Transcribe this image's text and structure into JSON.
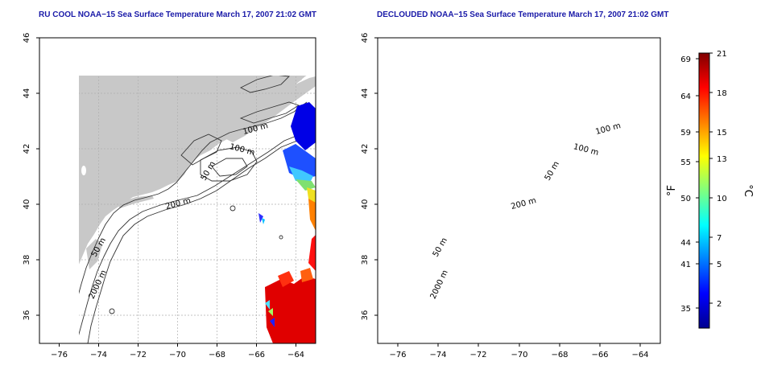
{
  "left_panel": {
    "title": "RU COOL NOAA−15 Sea Surface Temperature March 17, 2007 21:02 GMT",
    "contour_labels": [
      "100 m",
      "100 m",
      "50 m",
      "200 m",
      "50 m",
      "2000 m"
    ]
  },
  "right_panel": {
    "title": "DECLOUDED NOAA−15 Sea Surface Temperature March 17, 2007 21:02 GMT",
    "contour_labels": [
      "100 m",
      "100 m",
      "50 m",
      "200 m",
      "50 m",
      "2000 m"
    ]
  },
  "axes": {
    "lon_ticks": [
      "−76",
      "−74",
      "−72",
      "−70",
      "−68",
      "−66",
      "−64"
    ],
    "lat_ticks": [
      "46",
      "44",
      "42",
      "40",
      "38",
      "36"
    ],
    "lon_range": [
      -77.0,
      -63.0
    ],
    "lat_range": [
      35.0,
      46.0
    ]
  },
  "colorbar": {
    "fahrenheit_label": "°F",
    "celsius_label": "°C",
    "fahrenheit_ticks": [
      "69",
      "64",
      "59",
      "55",
      "50",
      "44",
      "41",
      "35"
    ],
    "celsius_ticks": [
      "21",
      "18",
      "15",
      "13",
      "10",
      "7",
      "5",
      "2"
    ],
    "range_celsius": [
      0,
      21
    ]
  },
  "colors": {
    "title": "#1a1aa8",
    "land": "#c8c8c8",
    "contour": "#333333",
    "grid": "#b0b0b0"
  }
}
